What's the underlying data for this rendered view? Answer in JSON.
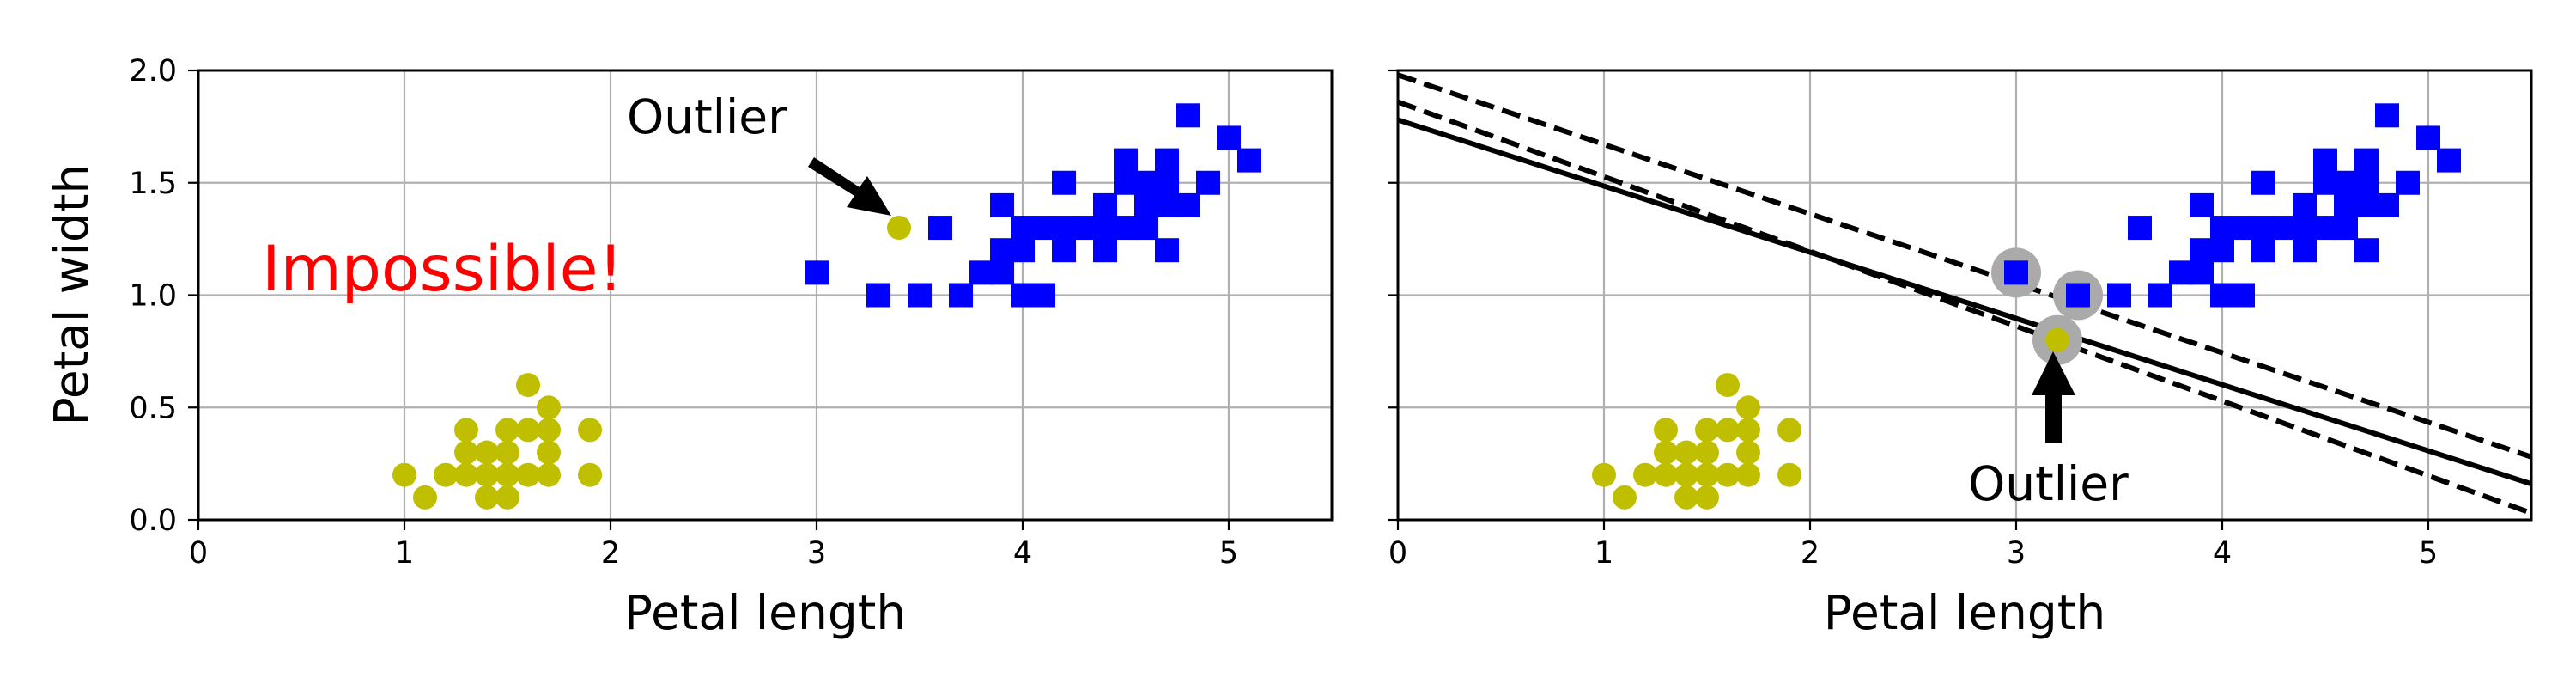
{
  "colors": {
    "setosa": "#bfbf00",
    "versicolor": "#0000ff",
    "highlight": "#aaaaaa",
    "boundary": "#000000",
    "impossible_text": "#ff0000"
  },
  "chart_data": [
    {
      "type": "scatter",
      "title": "",
      "xlabel": "Petal length",
      "ylabel": "Petal width",
      "xlim": [
        0,
        5.5
      ],
      "ylim": [
        0,
        2.0
      ],
      "xticks": [
        "0",
        "1",
        "2",
        "3",
        "4",
        "5"
      ],
      "yticks": [
        "0.0",
        "0.5",
        "1.0",
        "1.5",
        "2.0"
      ],
      "grid": true,
      "series": [
        {
          "marker": "circle",
          "color": "#bfbf00",
          "points": [
            [
              1.0,
              0.2
            ],
            [
              1.1,
              0.1
            ],
            [
              1.2,
              0.2
            ],
            [
              1.3,
              0.2
            ],
            [
              1.3,
              0.3
            ],
            [
              1.3,
              0.4
            ],
            [
              1.4,
              0.1
            ],
            [
              1.4,
              0.2
            ],
            [
              1.4,
              0.3
            ],
            [
              1.5,
              0.1
            ],
            [
              1.5,
              0.2
            ],
            [
              1.5,
              0.3
            ],
            [
              1.5,
              0.4
            ],
            [
              1.6,
              0.2
            ],
            [
              1.6,
              0.4
            ],
            [
              1.6,
              0.6
            ],
            [
              1.7,
              0.2
            ],
            [
              1.7,
              0.3
            ],
            [
              1.7,
              0.4
            ],
            [
              1.7,
              0.5
            ],
            [
              1.9,
              0.2
            ],
            [
              1.9,
              0.4
            ]
          ]
        },
        {
          "marker": "square",
          "color": "#0000ff",
          "points": [
            [
              3.0,
              1.1
            ],
            [
              3.3,
              1.0
            ],
            [
              3.5,
              1.0
            ],
            [
              3.6,
              1.3
            ],
            [
              3.7,
              1.0
            ],
            [
              3.8,
              1.1
            ],
            [
              3.9,
              1.1
            ],
            [
              3.9,
              1.2
            ],
            [
              3.9,
              1.4
            ],
            [
              4.0,
              1.0
            ],
            [
              4.0,
              1.2
            ],
            [
              4.0,
              1.3
            ],
            [
              4.1,
              1.0
            ],
            [
              4.1,
              1.3
            ],
            [
              4.2,
              1.2
            ],
            [
              4.2,
              1.3
            ],
            [
              4.2,
              1.5
            ],
            [
              4.3,
              1.3
            ],
            [
              4.4,
              1.2
            ],
            [
              4.4,
              1.3
            ],
            [
              4.4,
              1.4
            ],
            [
              4.5,
              1.3
            ],
            [
              4.5,
              1.5
            ],
            [
              4.5,
              1.6
            ],
            [
              4.6,
              1.3
            ],
            [
              4.6,
              1.4
            ],
            [
              4.6,
              1.5
            ],
            [
              4.7,
              1.2
            ],
            [
              4.7,
              1.4
            ],
            [
              4.7,
              1.5
            ],
            [
              4.7,
              1.6
            ],
            [
              4.8,
              1.4
            ],
            [
              4.8,
              1.8
            ],
            [
              4.9,
              1.5
            ],
            [
              5.0,
              1.7
            ],
            [
              5.1,
              1.6
            ]
          ]
        },
        {
          "marker": "circle",
          "color": "#bfbf00",
          "points": [
            [
              3.4,
              1.3
            ]
          ]
        }
      ],
      "annotations": [
        {
          "text": "Outlier",
          "arrow_to": [
            3.4,
            1.3
          ]
        },
        {
          "text": "Impossible!",
          "color": "#ff0000"
        }
      ]
    },
    {
      "type": "scatter",
      "title": "",
      "xlabel": "Petal length",
      "ylabel": "",
      "xlim": [
        0,
        5.5
      ],
      "ylim": [
        0,
        2.0
      ],
      "xticks": [
        "0",
        "1",
        "2",
        "3",
        "4",
        "5"
      ],
      "yticks": [],
      "grid": true,
      "series": [
        {
          "marker": "circle",
          "color": "#bfbf00",
          "points": [
            [
              1.0,
              0.2
            ],
            [
              1.1,
              0.1
            ],
            [
              1.2,
              0.2
            ],
            [
              1.3,
              0.2
            ],
            [
              1.3,
              0.3
            ],
            [
              1.3,
              0.4
            ],
            [
              1.4,
              0.1
            ],
            [
              1.4,
              0.2
            ],
            [
              1.4,
              0.3
            ],
            [
              1.5,
              0.1
            ],
            [
              1.5,
              0.2
            ],
            [
              1.5,
              0.3
            ],
            [
              1.5,
              0.4
            ],
            [
              1.6,
              0.2
            ],
            [
              1.6,
              0.4
            ],
            [
              1.6,
              0.6
            ],
            [
              1.7,
              0.2
            ],
            [
              1.7,
              0.3
            ],
            [
              1.7,
              0.4
            ],
            [
              1.7,
              0.5
            ],
            [
              1.9,
              0.2
            ],
            [
              1.9,
              0.4
            ]
          ]
        },
        {
          "marker": "square",
          "color": "#0000ff",
          "points": [
            [
              3.0,
              1.1
            ],
            [
              3.3,
              1.0
            ],
            [
              3.5,
              1.0
            ],
            [
              3.6,
              1.3
            ],
            [
              3.7,
              1.0
            ],
            [
              3.8,
              1.1
            ],
            [
              3.9,
              1.1
            ],
            [
              3.9,
              1.2
            ],
            [
              3.9,
              1.4
            ],
            [
              4.0,
              1.0
            ],
            [
              4.0,
              1.2
            ],
            [
              4.0,
              1.3
            ],
            [
              4.1,
              1.0
            ],
            [
              4.1,
              1.3
            ],
            [
              4.2,
              1.2
            ],
            [
              4.2,
              1.3
            ],
            [
              4.2,
              1.5
            ],
            [
              4.3,
              1.3
            ],
            [
              4.4,
              1.2
            ],
            [
              4.4,
              1.3
            ],
            [
              4.4,
              1.4
            ],
            [
              4.5,
              1.3
            ],
            [
              4.5,
              1.5
            ],
            [
              4.5,
              1.6
            ],
            [
              4.6,
              1.3
            ],
            [
              4.6,
              1.4
            ],
            [
              4.6,
              1.5
            ],
            [
              4.7,
              1.2
            ],
            [
              4.7,
              1.4
            ],
            [
              4.7,
              1.5
            ],
            [
              4.7,
              1.6
            ],
            [
              4.8,
              1.4
            ],
            [
              4.8,
              1.8
            ],
            [
              4.9,
              1.5
            ],
            [
              5.0,
              1.7
            ],
            [
              5.1,
              1.6
            ]
          ]
        },
        {
          "marker": "circle",
          "color": "#bfbf00",
          "points": [
            [
              3.2,
              0.8
            ]
          ]
        }
      ],
      "support_vectors": [
        [
          3.0,
          1.1
        ],
        [
          3.3,
          1.0
        ],
        [
          3.2,
          0.8
        ]
      ],
      "lines": [
        {
          "style": "solid",
          "points": [
            [
              0,
              1.78
            ],
            [
              5.5,
              0.16
            ]
          ]
        },
        {
          "style": "dashed",
          "points": [
            [
              0,
              1.98
            ],
            [
              5.5,
              0.28
            ]
          ]
        },
        {
          "style": "dashed",
          "points": [
            [
              0,
              1.86
            ],
            [
              5.5,
              0.03
            ]
          ]
        }
      ],
      "annotations": [
        {
          "text": "Outlier",
          "arrow_to": [
            3.2,
            0.8
          ]
        }
      ]
    }
  ]
}
